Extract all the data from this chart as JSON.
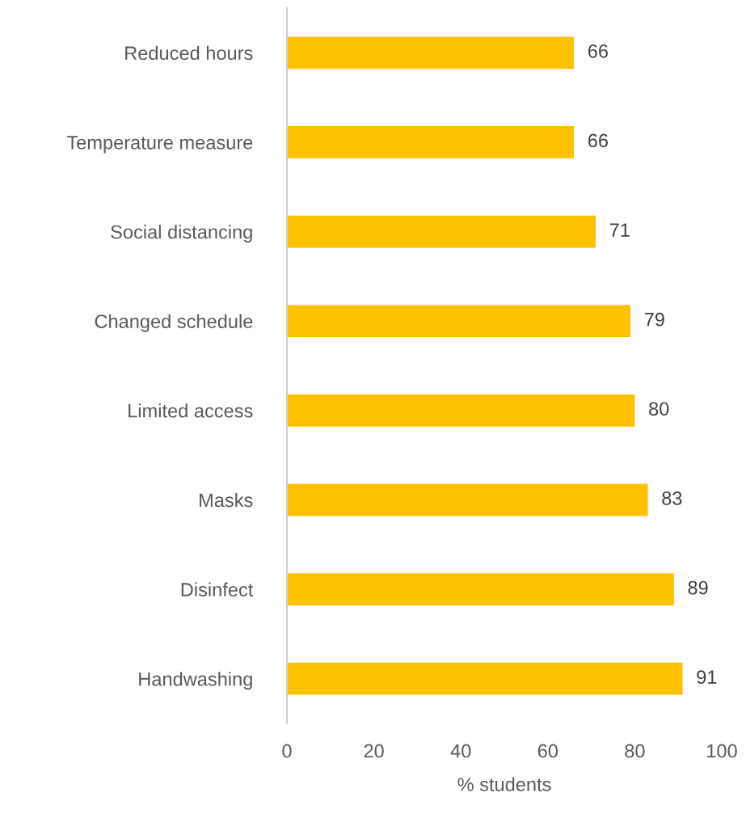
{
  "chart_data": {
    "type": "bar",
    "orientation": "horizontal",
    "xlabel": "% students",
    "categories": [
      "Reduced hours",
      "Temperature measure",
      "Social distancing",
      "Changed schedule",
      "Limited access",
      "Masks",
      "Disinfect",
      "Handwashing"
    ],
    "values": [
      66,
      66,
      71,
      79,
      80,
      83,
      89,
      91
    ],
    "color": "#ffc000",
    "xlim": [
      0,
      100
    ],
    "xticks": [
      0,
      20,
      40,
      60,
      80,
      100
    ],
    "grid": false,
    "data_labels": true
  }
}
